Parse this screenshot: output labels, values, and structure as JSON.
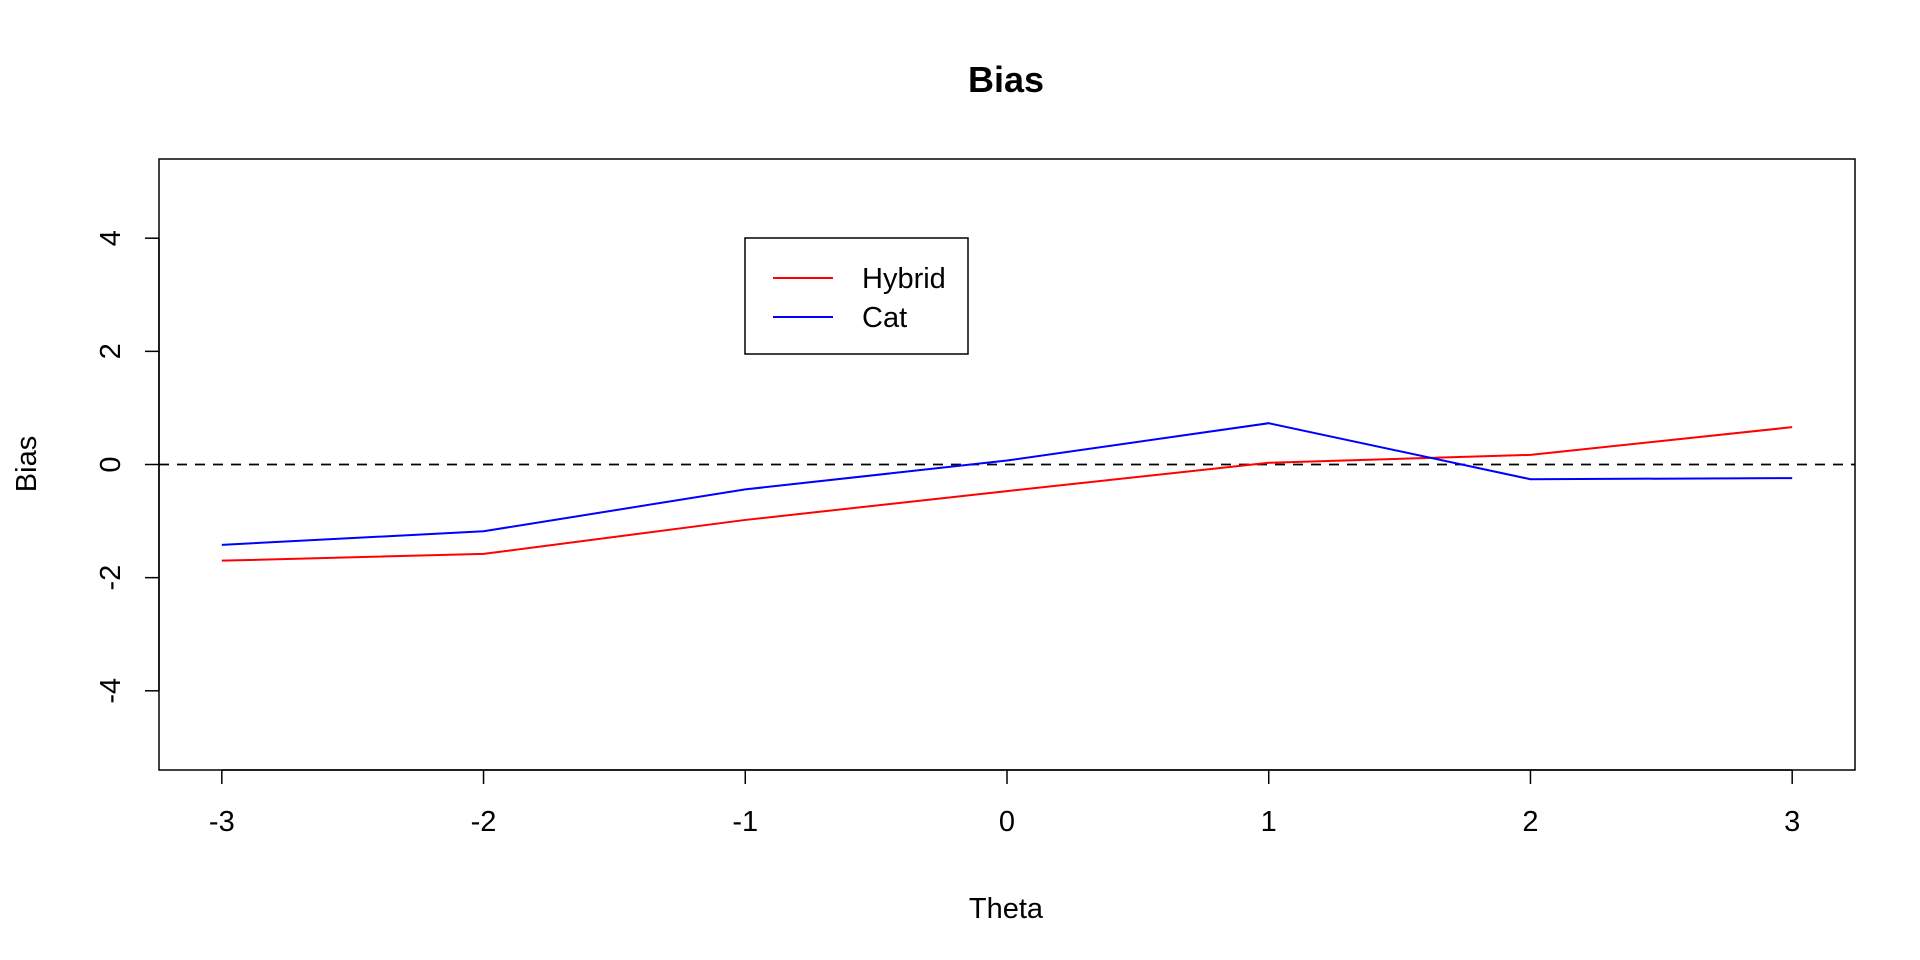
{
  "chart_data": {
    "type": "line",
    "title": "Bias",
    "xlabel": "Theta",
    "ylabel": "Bias",
    "x": [
      -3,
      -2,
      -1,
      0,
      1,
      2,
      3
    ],
    "xticks": [
      "-3",
      "-2",
      "-1",
      "0",
      "1",
      "2",
      "3"
    ],
    "yticks": [
      "-4",
      "-2",
      "0",
      "2",
      "4"
    ],
    "xlim": [
      -3.24,
      3.24
    ],
    "ylim": [
      -5.4,
      5.4
    ],
    "grid": false,
    "legend_position": "top-center-left",
    "reference_line": {
      "y": 0,
      "style": "dashed",
      "color": "#000000"
    },
    "series": [
      {
        "name": "Hybrid",
        "color": "#ff0000",
        "values": [
          -1.7,
          -1.58,
          -0.98,
          -0.47,
          0.03,
          0.17,
          0.66
        ]
      },
      {
        "name": "Cat",
        "color": "#0000ff",
        "values": [
          -1.42,
          -1.18,
          -0.44,
          0.07,
          0.73,
          -0.26,
          -0.24
        ]
      }
    ]
  }
}
